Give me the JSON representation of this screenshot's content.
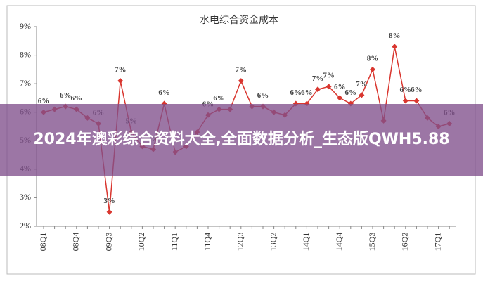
{
  "chart_data": {
    "type": "line",
    "title": "水电综合资金成本",
    "categories": [
      "08Q1",
      null,
      null,
      "08Q4",
      null,
      null,
      "09Q3",
      null,
      null,
      "10Q2",
      null,
      null,
      "11Q1",
      null,
      null,
      "11Q4",
      null,
      null,
      "12Q3",
      null,
      null,
      "13Q2",
      null,
      null,
      "14Q1",
      null,
      null,
      "14Q4",
      null,
      null,
      "15Q3",
      null,
      null,
      "16Q2",
      null,
      null,
      "17Q1",
      null
    ],
    "series": [
      {
        "name": "水电综合资金成本",
        "color": "#d9362f",
        "values": [
          6.0,
          6.1,
          6.2,
          6.1,
          5.8,
          5.6,
          2.5,
          7.1,
          5.3,
          4.8,
          4.7,
          6.3,
          4.6,
          4.8,
          5.3,
          5.9,
          6.1,
          6.1,
          7.1,
          6.2,
          6.2,
          6.0,
          5.9,
          6.3,
          6.3,
          6.8,
          6.9,
          6.5,
          6.3,
          6.6,
          7.5,
          5.7,
          8.3,
          6.4,
          6.4,
          5.8,
          5.5,
          5.6
        ],
        "value_labels": [
          "6%",
          null,
          "6%",
          "6%",
          null,
          "6%",
          "3%",
          "7%",
          "5%",
          null,
          "5%",
          "6%",
          null,
          null,
          null,
          "6%",
          "6%",
          null,
          "7%",
          null,
          "6%",
          null,
          null,
          "6%",
          "6%",
          "7%",
          "7%",
          "6%",
          "6%",
          "7%",
          "8%",
          null,
          "8%",
          "6%",
          "6%",
          null,
          null,
          "6%"
        ]
      }
    ],
    "ylim": [
      2,
      9
    ],
    "yticks": [
      {
        "value": 2,
        "label": "2%"
      },
      {
        "value": 3,
        "label": "3%"
      },
      {
        "value": 4,
        "label": "4%"
      },
      {
        "value": 5,
        "label": "5%"
      },
      {
        "value": 6,
        "label": "6%"
      },
      {
        "value": 7,
        "label": "7%"
      },
      {
        "value": 8,
        "label": "8%"
      },
      {
        "value": 9,
        "label": "9%"
      }
    ]
  },
  "overlay_text": "2024年澳彩综合资料大全,全面数据分析_生态版QWH5.88"
}
